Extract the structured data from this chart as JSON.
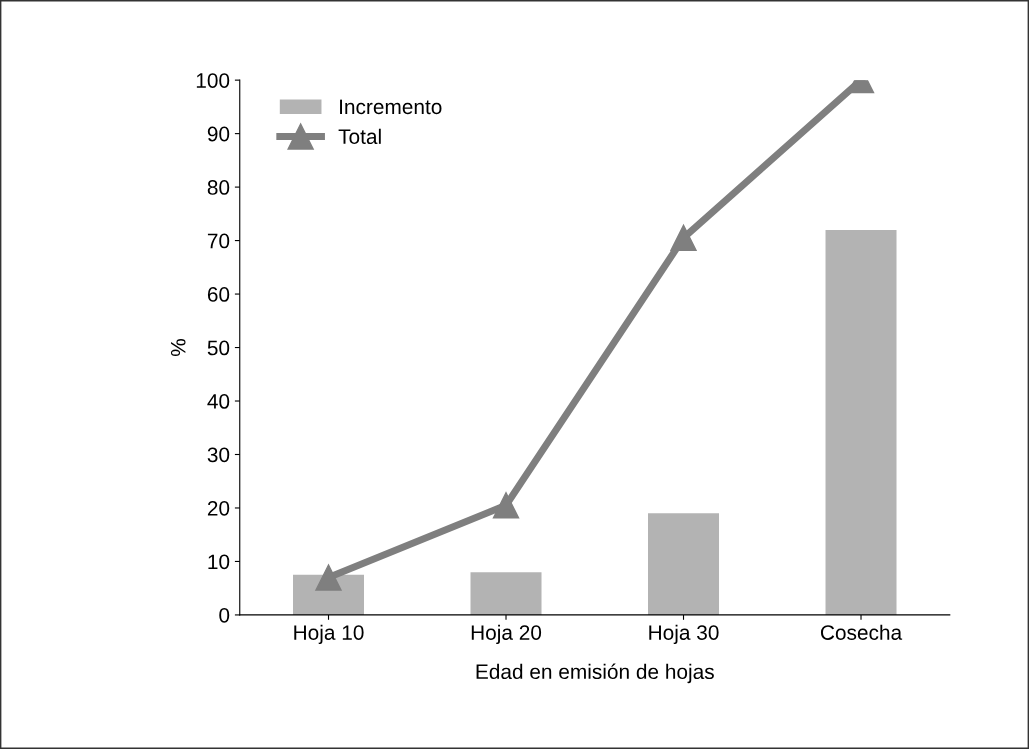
{
  "chart_data": {
    "type": "bar",
    "xlabel": "Edad en emisión de hojas",
    "ylabel": "%",
    "categories": [
      "Hoja 10",
      "Hoja 20",
      "Hoja 30",
      "Cosecha"
    ],
    "series": [
      {
        "name": "Incremento",
        "type": "bar",
        "color": "#b3b3b3",
        "values": [
          7.5,
          8,
          19,
          72
        ]
      },
      {
        "name": "Total",
        "type": "line",
        "color": "#7f7f7f",
        "marker": "triangle",
        "values": [
          7,
          20.5,
          70.5,
          100
        ]
      }
    ],
    "ylim": [
      0,
      100
    ],
    "yticks": [
      0,
      10,
      20,
      30,
      40,
      50,
      60,
      70,
      80,
      90,
      100
    ],
    "grid": false,
    "legend": "top left"
  }
}
